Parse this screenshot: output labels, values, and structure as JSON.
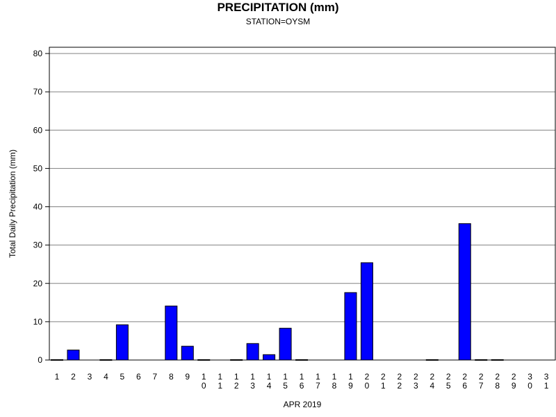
{
  "chart_data": {
    "type": "bar",
    "title": "PRECIPITATION (mm)",
    "subtitle": "STATION=OYSM",
    "xlabel": "APR 2019",
    "ylabel": "Total Daily Precipitation (mm)",
    "ylim": [
      0,
      80
    ],
    "yticks": [
      0,
      10,
      20,
      30,
      40,
      50,
      60,
      70,
      80
    ],
    "grid": true,
    "bar_color": "#0000ff",
    "categories": [
      "1",
      "2",
      "3",
      "4",
      "5",
      "6",
      "7",
      "8",
      "9",
      "10",
      "11",
      "12",
      "13",
      "14",
      "15",
      "16",
      "17",
      "18",
      "19",
      "20",
      "21",
      "22",
      "23",
      "24",
      "25",
      "26",
      "27",
      "28",
      "29",
      "30",
      "31"
    ],
    "values": [
      0.1,
      2.6,
      null,
      0.1,
      9.2,
      null,
      null,
      14.1,
      3.6,
      0.1,
      null,
      0.1,
      4.3,
      1.4,
      8.3,
      0.1,
      null,
      null,
      17.6,
      25.4,
      null,
      null,
      null,
      0.1,
      null,
      35.6,
      0.1,
      0.1,
      null,
      null,
      null
    ]
  }
}
